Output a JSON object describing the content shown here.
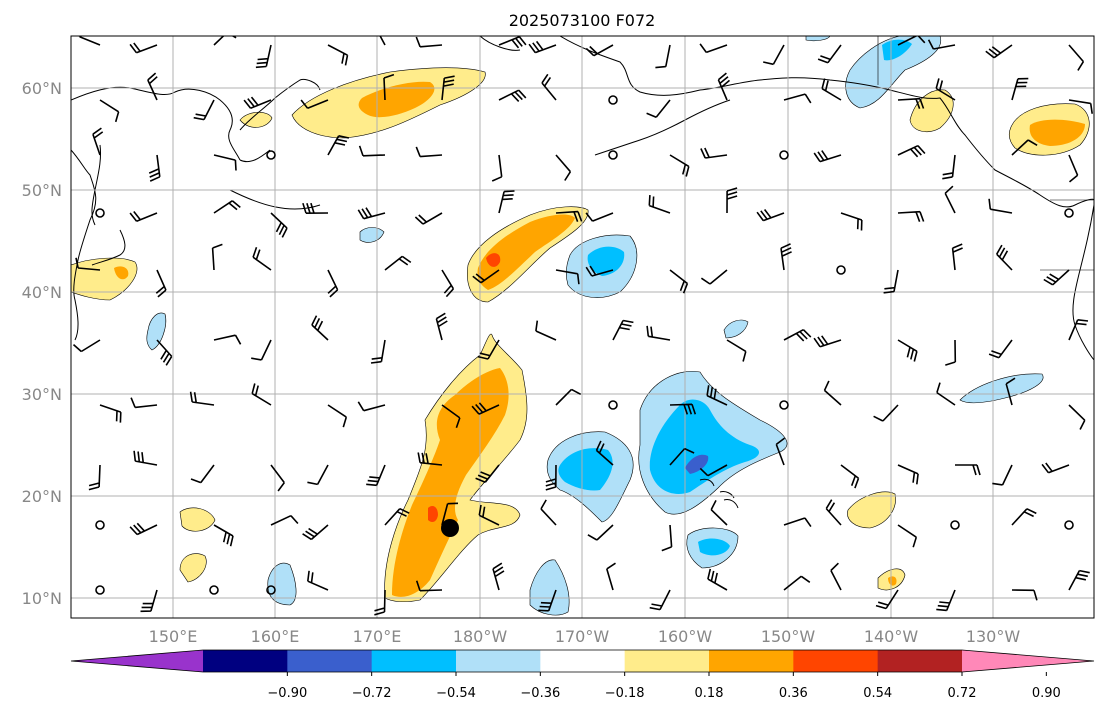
{
  "title": "2025073100 F072",
  "lat_labels": [
    "60°N",
    "50°N",
    "40°N",
    "30°N",
    "20°N",
    "10°N"
  ],
  "lon_labels": [
    "150°E",
    "160°E",
    "170°E",
    "180°W",
    "170°W",
    "160°W",
    "150°W",
    "140°W",
    "130°W"
  ],
  "colorbar": {
    "colors": [
      "#9933cc",
      "#000080",
      "#3a5fcd",
      "#00bfff",
      "#b0e0f8",
      "#ffffff",
      "#ffec8b",
      "#ffa500",
      "#ff4500",
      "#b22222",
      "#ff88b8"
    ],
    "tick_labels": [
      "−0.90",
      "−0.72",
      "−0.54",
      "−0.36",
      "−0.18",
      "0.18",
      "0.36",
      "0.54",
      "0.72",
      "0.90"
    ]
  },
  "colors": {
    "land_outline": "#000000",
    "grid": "#b0b0b0",
    "positive_light": "#ffec8b",
    "positive_mid": "#ffa500",
    "positive_strong": "#ff4500",
    "negative_light": "#b0e0f8",
    "negative_mid": "#00bfff",
    "negative_strong": "#3a5fcd"
  },
  "marker": {
    "lat": 17,
    "lon": "177°E"
  }
}
